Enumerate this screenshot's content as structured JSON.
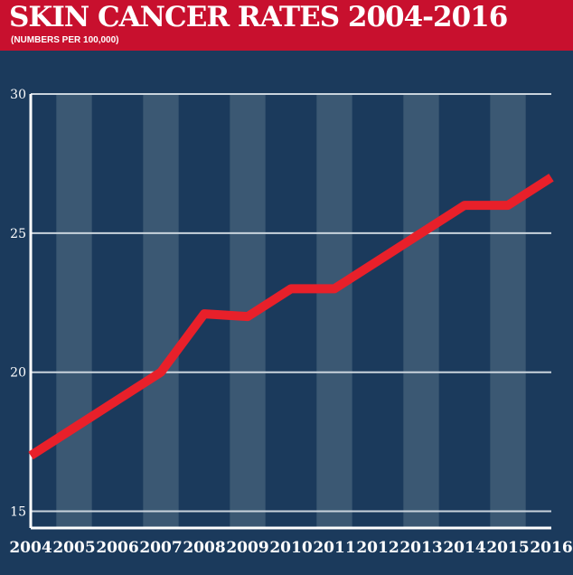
{
  "header": {
    "title": "SKIN CANCER RATES 2004-2016",
    "subtitle": "(NUMBERS PER 100,000)"
  },
  "colors": {
    "background": "#1b3a5c",
    "header": "#c8102e",
    "line": "#e8202a",
    "band": "#3b5873",
    "grid": "#c9d3dc"
  },
  "chart_data": {
    "type": "line",
    "x": [
      "2004",
      "2005",
      "2006",
      "2007",
      "2008",
      "2009",
      "2010",
      "2011",
      "2012",
      "2013",
      "2014",
      "2015",
      "2016"
    ],
    "series": [
      {
        "values": [
          17.0,
          18.0,
          19.0,
          20.0,
          22.1,
          22.0,
          23.0,
          23.0,
          24.0,
          25.0,
          26.0,
          26.0,
          27.0
        ]
      }
    ],
    "yticks": [
      "15",
      "20",
      "25",
      "30"
    ],
    "ylim": [
      14.4,
      30
    ],
    "grid": true,
    "alternating_bands": true
  }
}
